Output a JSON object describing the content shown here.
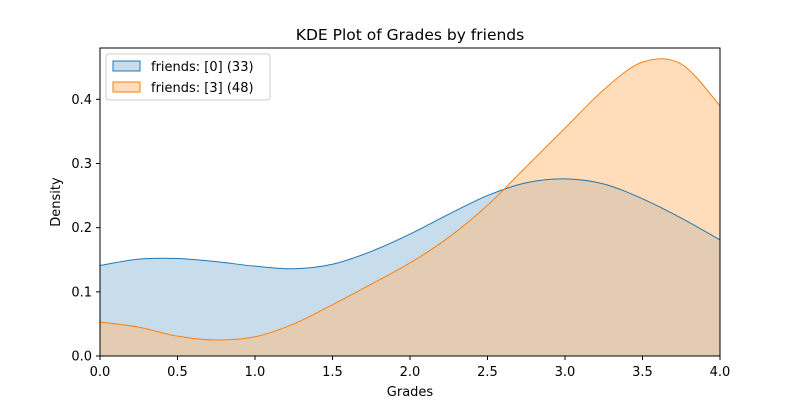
{
  "chart_data": {
    "type": "area",
    "title": "KDE Plot of Grades by friends",
    "xlabel": "Grades",
    "ylabel": "Density",
    "xlim": [
      0,
      4
    ],
    "ylim": [
      0,
      0.48
    ],
    "xticks": [
      "0.0",
      "0.5",
      "1.0",
      "1.5",
      "2.0",
      "2.5",
      "3.0",
      "3.5",
      "4.0"
    ],
    "yticks": [
      "0.0",
      "0.1",
      "0.2",
      "0.3",
      "0.4"
    ],
    "grid": false,
    "legend_position": "top-left",
    "series": [
      {
        "name": "friends: [0] (33)",
        "line_color": "#1f77b4",
        "fill_color": "#1f77b4",
        "x": [
          0.0,
          0.25,
          0.5,
          0.75,
          1.0,
          1.25,
          1.5,
          1.75,
          2.0,
          2.25,
          2.5,
          2.75,
          3.0,
          3.25,
          3.5,
          3.75,
          4.0
        ],
        "values": [
          0.141,
          0.151,
          0.152,
          0.147,
          0.14,
          0.136,
          0.143,
          0.163,
          0.19,
          0.221,
          0.25,
          0.27,
          0.276,
          0.268,
          0.245,
          0.215,
          0.181
        ]
      },
      {
        "name": "friends: [3] (48)",
        "line_color": "#ff7f0e",
        "fill_color": "#ffbb78",
        "x": [
          0.0,
          0.25,
          0.5,
          0.75,
          1.0,
          1.25,
          1.5,
          1.75,
          2.0,
          2.25,
          2.5,
          2.75,
          3.0,
          3.25,
          3.5,
          3.75,
          4.0
        ],
        "values": [
          0.053,
          0.045,
          0.031,
          0.025,
          0.03,
          0.05,
          0.08,
          0.112,
          0.145,
          0.185,
          0.235,
          0.295,
          0.355,
          0.415,
          0.458,
          0.455,
          0.39
        ]
      }
    ]
  }
}
